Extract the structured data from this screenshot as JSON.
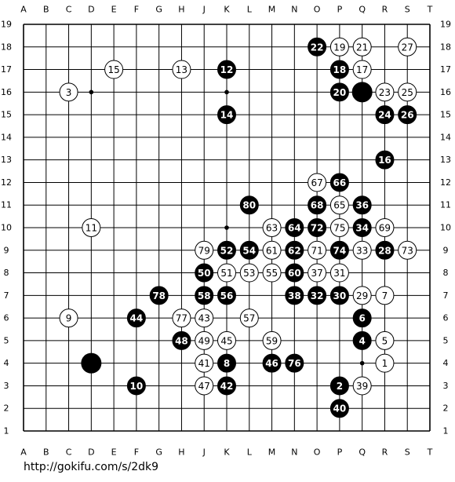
{
  "board": {
    "columns": [
      "A",
      "B",
      "C",
      "D",
      "E",
      "F",
      "G",
      "H",
      "J",
      "K",
      "L",
      "M",
      "N",
      "O",
      "P",
      "Q",
      "R",
      "S",
      "T"
    ],
    "rows": [
      19,
      18,
      17,
      16,
      15,
      14,
      13,
      12,
      11,
      10,
      9,
      8,
      7,
      6,
      5,
      4,
      3,
      2,
      1
    ],
    "stones": [
      {
        "col": "O",
        "row": 18,
        "color": "black",
        "label": "22"
      },
      {
        "col": "P",
        "row": 18,
        "color": "white",
        "label": "19"
      },
      {
        "col": "Q",
        "row": 18,
        "color": "white",
        "label": "21"
      },
      {
        "col": "S",
        "row": 18,
        "color": "white",
        "label": "27"
      },
      {
        "col": "E",
        "row": 17,
        "color": "white",
        "label": "15"
      },
      {
        "col": "H",
        "row": 17,
        "color": "white",
        "label": "13"
      },
      {
        "col": "K",
        "row": 17,
        "color": "black",
        "label": "12"
      },
      {
        "col": "P",
        "row": 17,
        "color": "black",
        "label": "18"
      },
      {
        "col": "Q",
        "row": 17,
        "color": "white",
        "label": "17"
      },
      {
        "col": "C",
        "row": 16,
        "color": "white",
        "label": "3"
      },
      {
        "col": "P",
        "row": 16,
        "color": "black",
        "label": "20"
      },
      {
        "col": "Q",
        "row": 16,
        "color": "black"
      },
      {
        "col": "R",
        "row": 16,
        "color": "white",
        "label": "23"
      },
      {
        "col": "S",
        "row": 16,
        "color": "white",
        "label": "25"
      },
      {
        "col": "K",
        "row": 15,
        "color": "black",
        "label": "14"
      },
      {
        "col": "R",
        "row": 15,
        "color": "black",
        "label": "24"
      },
      {
        "col": "S",
        "row": 15,
        "color": "black",
        "label": "26"
      },
      {
        "col": "R",
        "row": 13,
        "color": "black",
        "label": "16"
      },
      {
        "col": "O",
        "row": 12,
        "color": "white",
        "label": "67"
      },
      {
        "col": "P",
        "row": 12,
        "color": "black",
        "label": "66"
      },
      {
        "col": "L",
        "row": 11,
        "color": "black",
        "label": "80"
      },
      {
        "col": "O",
        "row": 11,
        "color": "black",
        "label": "68"
      },
      {
        "col": "P",
        "row": 11,
        "color": "white",
        "label": "65"
      },
      {
        "col": "Q",
        "row": 11,
        "color": "black",
        "label": "36"
      },
      {
        "col": "D",
        "row": 10,
        "color": "white",
        "label": "11"
      },
      {
        "col": "M",
        "row": 10,
        "color": "white",
        "label": "63"
      },
      {
        "col": "N",
        "row": 10,
        "color": "black",
        "label": "64"
      },
      {
        "col": "O",
        "row": 10,
        "color": "black",
        "label": "72"
      },
      {
        "col": "P",
        "row": 10,
        "color": "white",
        "label": "75"
      },
      {
        "col": "Q",
        "row": 10,
        "color": "black",
        "label": "34"
      },
      {
        "col": "R",
        "row": 10,
        "color": "white",
        "label": "69"
      },
      {
        "col": "J",
        "row": 9,
        "color": "white",
        "label": "79"
      },
      {
        "col": "K",
        "row": 9,
        "color": "black",
        "label": "52"
      },
      {
        "col": "L",
        "row": 9,
        "color": "black",
        "label": "54"
      },
      {
        "col": "M",
        "row": 9,
        "color": "white",
        "label": "61"
      },
      {
        "col": "N",
        "row": 9,
        "color": "black",
        "label": "62"
      },
      {
        "col": "O",
        "row": 9,
        "color": "white",
        "label": "71"
      },
      {
        "col": "P",
        "row": 9,
        "color": "black",
        "label": "74"
      },
      {
        "col": "Q",
        "row": 9,
        "color": "white",
        "label": "33"
      },
      {
        "col": "R",
        "row": 9,
        "color": "black",
        "label": "28"
      },
      {
        "col": "S",
        "row": 9,
        "color": "white",
        "label": "73"
      },
      {
        "col": "J",
        "row": 8,
        "color": "black",
        "label": "50"
      },
      {
        "col": "K",
        "row": 8,
        "color": "white",
        "label": "51"
      },
      {
        "col": "L",
        "row": 8,
        "color": "white",
        "label": "53"
      },
      {
        "col": "M",
        "row": 8,
        "color": "white",
        "label": "55"
      },
      {
        "col": "N",
        "row": 8,
        "color": "black",
        "label": "60"
      },
      {
        "col": "O",
        "row": 8,
        "color": "white",
        "label": "37"
      },
      {
        "col": "P",
        "row": 8,
        "color": "white",
        "label": "31"
      },
      {
        "col": "G",
        "row": 7,
        "color": "black",
        "label": "78"
      },
      {
        "col": "J",
        "row": 7,
        "color": "black",
        "label": "58"
      },
      {
        "col": "K",
        "row": 7,
        "color": "black",
        "label": "56"
      },
      {
        "col": "N",
        "row": 7,
        "color": "black",
        "label": "38"
      },
      {
        "col": "O",
        "row": 7,
        "color": "black",
        "label": "32"
      },
      {
        "col": "P",
        "row": 7,
        "color": "black",
        "label": "30"
      },
      {
        "col": "Q",
        "row": 7,
        "color": "white",
        "label": "29"
      },
      {
        "col": "R",
        "row": 7,
        "color": "white",
        "label": "7"
      },
      {
        "col": "C",
        "row": 6,
        "color": "white",
        "label": "9"
      },
      {
        "col": "F",
        "row": 6,
        "color": "black",
        "label": "44"
      },
      {
        "col": "H",
        "row": 6,
        "color": "white",
        "label": "77"
      },
      {
        "col": "J",
        "row": 6,
        "color": "white",
        "label": "43"
      },
      {
        "col": "L",
        "row": 6,
        "color": "white",
        "label": "57"
      },
      {
        "col": "Q",
        "row": 6,
        "color": "black",
        "label": "6"
      },
      {
        "col": "H",
        "row": 5,
        "color": "black",
        "label": "48"
      },
      {
        "col": "J",
        "row": 5,
        "color": "white",
        "label": "49"
      },
      {
        "col": "K",
        "row": 5,
        "color": "white",
        "label": "45"
      },
      {
        "col": "M",
        "row": 5,
        "color": "white",
        "label": "59"
      },
      {
        "col": "Q",
        "row": 5,
        "color": "black",
        "label": "4"
      },
      {
        "col": "R",
        "row": 5,
        "color": "white",
        "label": "5"
      },
      {
        "col": "D",
        "row": 4,
        "color": "black"
      },
      {
        "col": "J",
        "row": 4,
        "color": "white",
        "label": "41"
      },
      {
        "col": "K",
        "row": 4,
        "color": "black",
        "label": "8"
      },
      {
        "col": "M",
        "row": 4,
        "color": "black",
        "label": "46"
      },
      {
        "col": "N",
        "row": 4,
        "color": "black",
        "label": "76"
      },
      {
        "col": "R",
        "row": 4,
        "color": "white",
        "label": "1"
      },
      {
        "col": "F",
        "row": 3,
        "color": "black",
        "label": "10"
      },
      {
        "col": "J",
        "row": 3,
        "color": "white",
        "label": "47"
      },
      {
        "col": "K",
        "row": 3,
        "color": "black",
        "label": "42"
      },
      {
        "col": "P",
        "row": 3,
        "color": "black",
        "label": "2"
      },
      {
        "col": "Q",
        "row": 3,
        "color": "white",
        "label": "39"
      },
      {
        "col": "P",
        "row": 2,
        "color": "black",
        "label": "40"
      }
    ]
  },
  "footer": {
    "url": "http://gokifu.com/s/2dk9"
  }
}
